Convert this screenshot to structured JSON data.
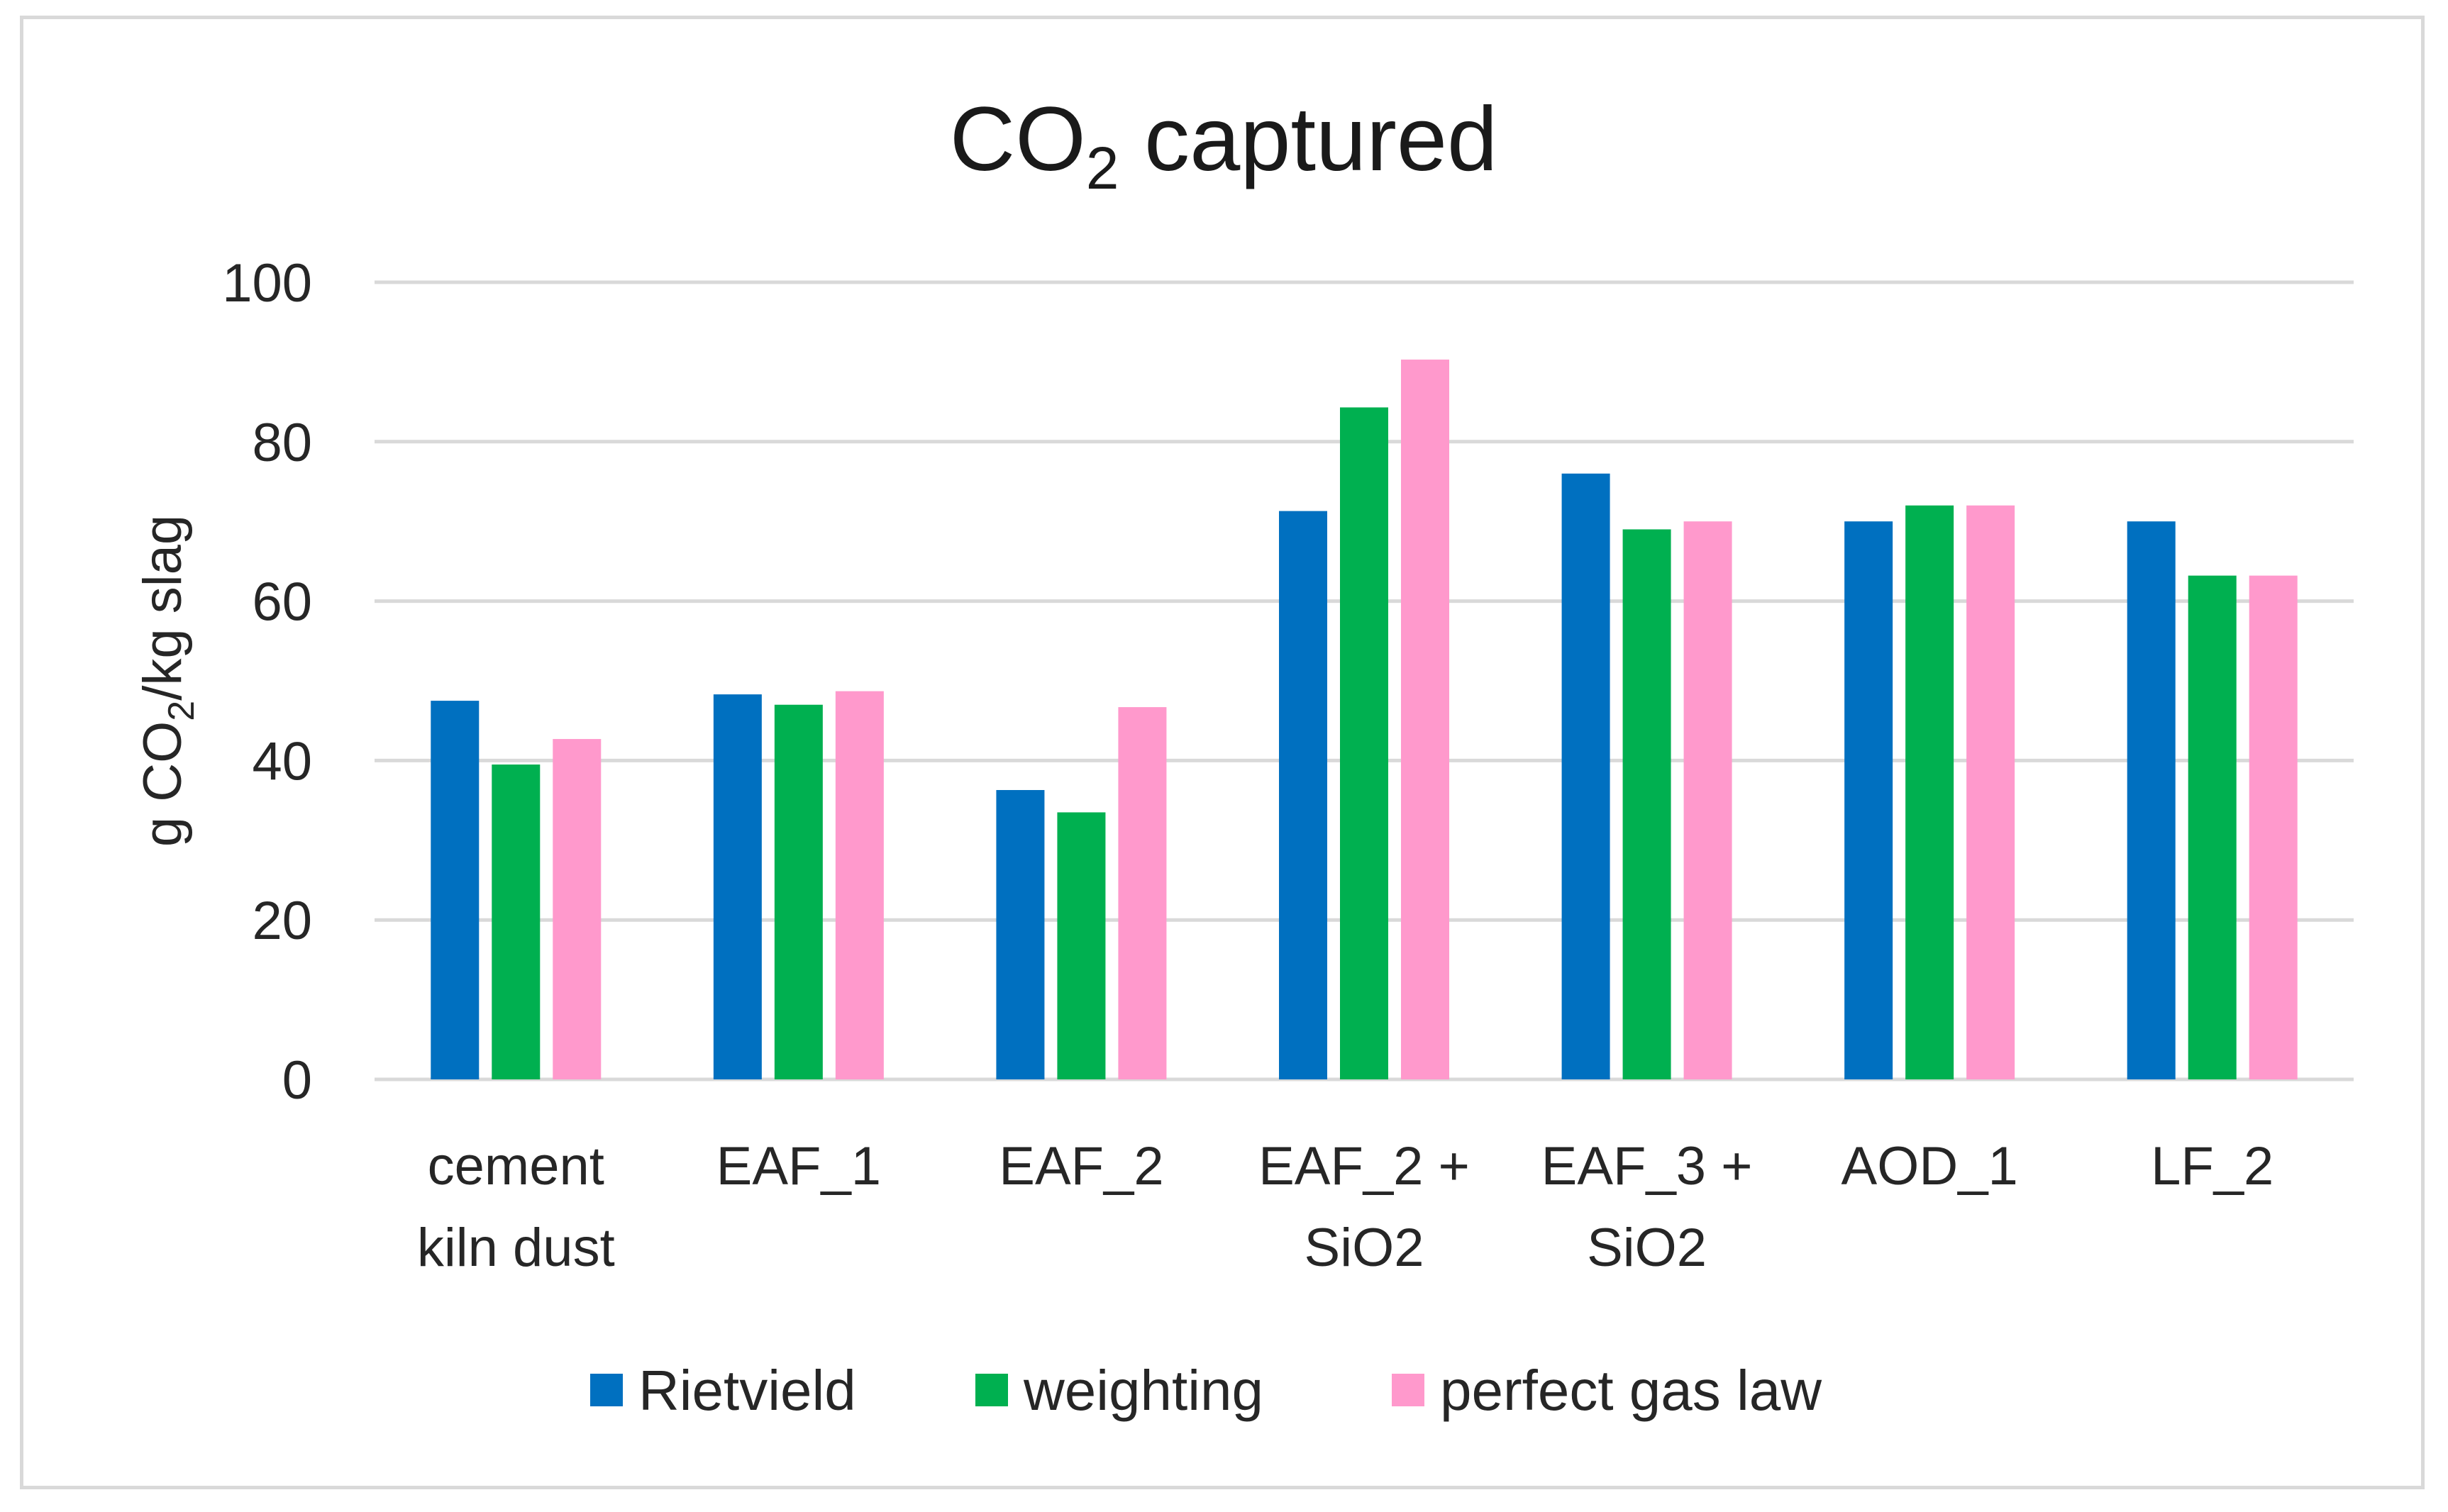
{
  "chart_data": {
    "type": "bar",
    "title": {
      "main": "CO",
      "sub": "2",
      "rest": " captured"
    },
    "ylabel": {
      "pre": "g CO",
      "sub": "2",
      "post": "/kg slag"
    },
    "xlabel": "",
    "ylim": [
      0,
      100
    ],
    "yticks": [
      0,
      20,
      40,
      60,
      80,
      100
    ],
    "grid": true,
    "legend_position": "bottom",
    "categories": [
      [
        "cement",
        "kiln dust"
      ],
      [
        "EAF_1"
      ],
      [
        "EAF_2"
      ],
      [
        "EAF_2 +",
        "SiO2"
      ],
      [
        "EAF_3 +",
        "SiO2"
      ],
      [
        "AOD_1"
      ],
      [
        "LF_2"
      ]
    ],
    "series": [
      {
        "name": "Rietvield",
        "color": "#0070c0",
        "values": [
          47.5,
          48.3,
          36.3,
          71.3,
          76.0,
          70.0,
          70.0
        ]
      },
      {
        "name": "weighting",
        "color": "#00b050",
        "values": [
          39.5,
          47.0,
          33.5,
          84.3,
          69.0,
          72.0,
          63.2
        ]
      },
      {
        "name": "perfect gas law",
        "color": "#ff99cc",
        "values": [
          42.7,
          48.7,
          46.7,
          90.3,
          70.0,
          72.0,
          63.2
        ]
      }
    ]
  }
}
